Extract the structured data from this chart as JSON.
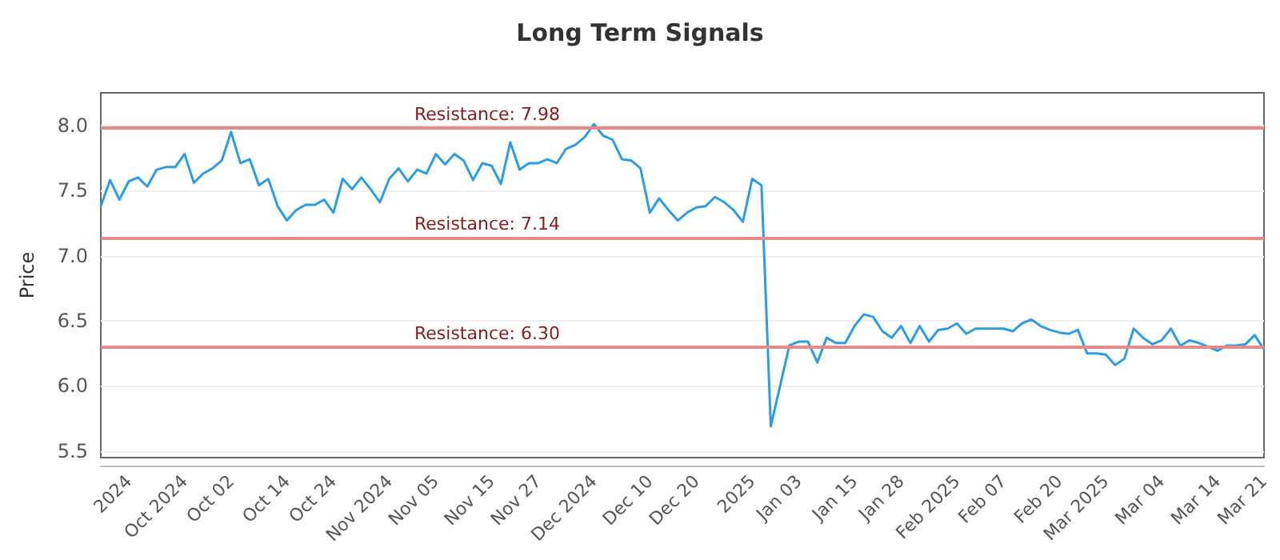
{
  "chart_data": {
    "type": "line",
    "title": "Long Term Signals",
    "ylabel": "Price",
    "categories": [
      null,
      null,
      null,
      "2024",
      null,
      null,
      null,
      null,
      null,
      "Oct 2024",
      null,
      null,
      null,
      null,
      "Oct 02",
      null,
      null,
      null,
      null,
      null,
      "Oct 14",
      null,
      null,
      null,
      null,
      "Oct 24",
      null,
      null,
      null,
      null,
      null,
      "Nov 2024",
      null,
      null,
      null,
      null,
      "Nov 05",
      null,
      null,
      null,
      null,
      null,
      "Nov 15",
      null,
      null,
      null,
      null,
      "Nov 27",
      null,
      null,
      null,
      null,
      null,
      "Dec 2024",
      null,
      null,
      null,
      null,
      null,
      "Dec 10",
      null,
      null,
      null,
      null,
      "Dec 20",
      null,
      null,
      null,
      null,
      null,
      "2025",
      null,
      null,
      null,
      null,
      "Jan 03",
      null,
      null,
      null,
      null,
      null,
      "Jan 15",
      null,
      null,
      null,
      null,
      "Jan 28",
      null,
      null,
      null,
      null,
      null,
      "Feb 2025",
      null,
      null,
      null,
      null,
      "Feb 07",
      null,
      null,
      null,
      null,
      null,
      "Feb 20",
      null,
      null,
      null,
      null,
      "Mar 2025",
      null,
      null,
      null,
      null,
      null,
      "Mar 04",
      null,
      null,
      null,
      null,
      null,
      "Mar 14",
      null,
      null,
      null,
      null,
      "Mar 21"
    ],
    "series": [
      {
        "color": "#2b9de8",
        "values": [
          7.38,
          7.58,
          7.43,
          7.57,
          7.6,
          7.53,
          7.66,
          7.68,
          7.68,
          7.78,
          7.56,
          7.63,
          7.67,
          7.73,
          7.95,
          7.71,
          7.74,
          7.54,
          7.59,
          7.38,
          7.27,
          7.35,
          7.39,
          7.39,
          7.43,
          7.33,
          7.59,
          7.51,
          7.6,
          7.51,
          7.41,
          7.59,
          7.67,
          7.57,
          7.66,
          7.63,
          7.78,
          7.7,
          7.78,
          7.73,
          7.58,
          7.71,
          7.69,
          7.55,
          7.87,
          7.66,
          7.71,
          7.71,
          7.74,
          7.71,
          7.82,
          7.85,
          7.91,
          8.01,
          7.92,
          7.89,
          7.74,
          7.73,
          7.67,
          7.33,
          7.44,
          7.35,
          7.27,
          7.33,
          7.37,
          7.38,
          7.45,
          7.41,
          7.35,
          7.26,
          7.59,
          7.54,
          5.69,
          6.0,
          6.31,
          6.34,
          6.34,
          6.18,
          6.37,
          6.33,
          6.33,
          6.46,
          6.55,
          6.53,
          6.42,
          6.37,
          6.46,
          6.33,
          6.46,
          6.34,
          6.43,
          6.44,
          6.48,
          6.4,
          6.44,
          6.44,
          6.44,
          6.44,
          6.42,
          6.48,
          6.51,
          6.46,
          6.43,
          6.41,
          6.4,
          6.43,
          6.25,
          6.25,
          6.24,
          6.16,
          6.21,
          6.44,
          6.37,
          6.32,
          6.35,
          6.44,
          6.31,
          6.35,
          6.33,
          6.3,
          6.27,
          6.31,
          6.31,
          6.32,
          6.39,
          6.28
        ]
      }
    ],
    "ylim": [
      5.45,
      8.25
    ],
    "yticks": [
      {
        "value": 5.5,
        "label": "5.5"
      },
      {
        "value": 6,
        "label": "6.0"
      },
      {
        "value": 6.5,
        "label": "6.5"
      },
      {
        "value": 7,
        "label": "7.0"
      },
      {
        "value": 7.5,
        "label": "7.5"
      },
      {
        "value": 8,
        "label": "8.0"
      }
    ],
    "grid": "y",
    "marker": "none",
    "line_style": "solid",
    "ref_lines": [
      {
        "axis": "y",
        "value": 7.98,
        "label": "Resistance: 7.98",
        "color": "#e88a8a"
      },
      {
        "axis": "y",
        "value": 7.14,
        "label": "Resistance: 7.14",
        "color": "#e88a8a"
      },
      {
        "axis": "y",
        "value": 6.3,
        "label": "Resistance: 6.30",
        "color": "#e88a8a"
      }
    ]
  }
}
